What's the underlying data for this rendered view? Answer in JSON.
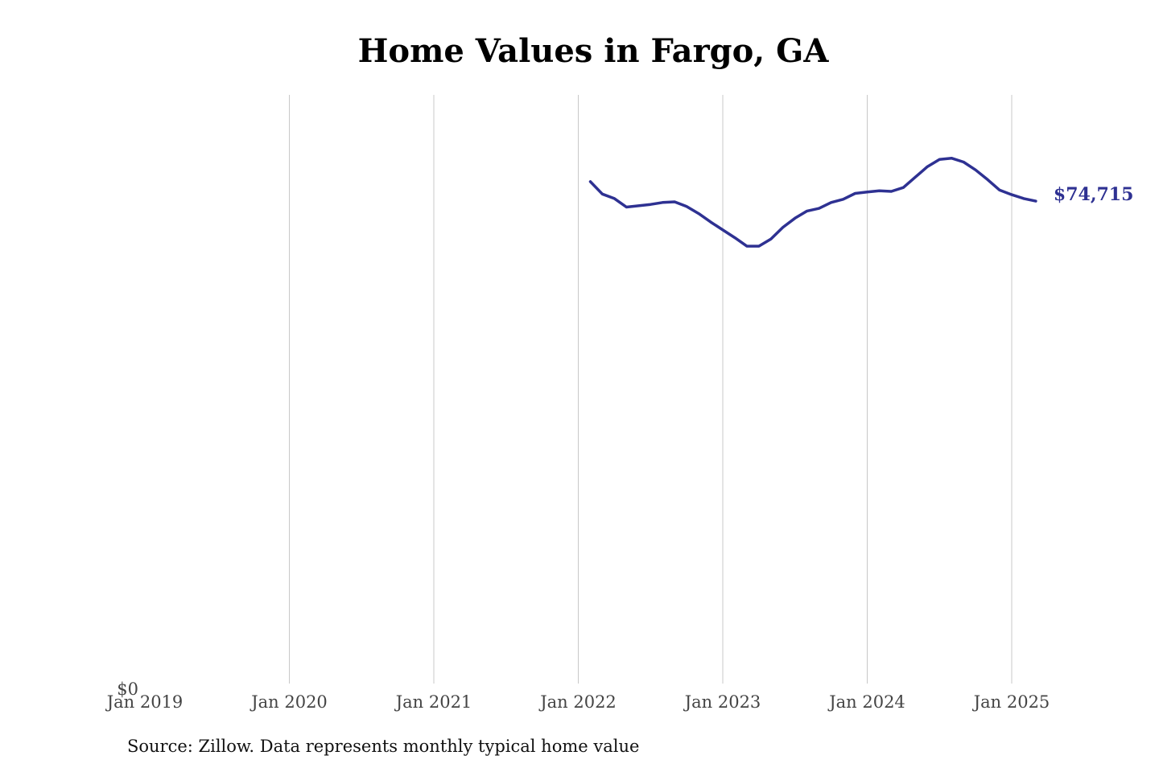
{
  "title": "Home Values in Fargo, GA",
  "source": "Source: Zillow. Data represents monthly typical home value",
  "colors": {
    "line": "#2e3192",
    "grid": "#c8c8c8",
    "text": "#444444"
  },
  "chart_data": {
    "type": "line",
    "title": "Home Values in Fargo, GA",
    "xlabel": "",
    "ylabel": "",
    "grid": "vertical",
    "y_tick_labels": [
      "$0"
    ],
    "ylim": [
      0,
      91000
    ],
    "x_tick_labels": [
      "Jan 2019",
      "Jan 2020",
      "Jan 2021",
      "Jan 2022",
      "Jan 2023",
      "Jan 2024",
      "Jan 2025"
    ],
    "end_label": "$74,715",
    "series": [
      {
        "points": [
          [
            "2022-02",
            77700
          ],
          [
            "2022-03",
            75800
          ],
          [
            "2022-04",
            75100
          ],
          [
            "2022-05",
            73800
          ],
          [
            "2022-06",
            74000
          ],
          [
            "2022-07",
            74200
          ],
          [
            "2022-08",
            74500
          ],
          [
            "2022-09",
            74600
          ],
          [
            "2022-10",
            73900
          ],
          [
            "2022-11",
            72800
          ],
          [
            "2022-12",
            71500
          ],
          [
            "2023-01",
            70300
          ],
          [
            "2023-02",
            69100
          ],
          [
            "2023-03",
            67800
          ],
          [
            "2023-04",
            67800
          ],
          [
            "2023-05",
            68900
          ],
          [
            "2023-06",
            70700
          ],
          [
            "2023-07",
            72100
          ],
          [
            "2023-08",
            73200
          ],
          [
            "2023-09",
            73600
          ],
          [
            "2023-10",
            74500
          ],
          [
            "2023-11",
            75000
          ],
          [
            "2023-12",
            75900
          ],
          [
            "2024-01",
            76100
          ],
          [
            "2024-02",
            76300
          ],
          [
            "2024-03",
            76200
          ],
          [
            "2024-04",
            76800
          ],
          [
            "2024-05",
            78400
          ],
          [
            "2024-06",
            80000
          ],
          [
            "2024-07",
            81100
          ],
          [
            "2024-08",
            81300
          ],
          [
            "2024-09",
            80700
          ],
          [
            "2024-10",
            79500
          ],
          [
            "2024-11",
            78000
          ],
          [
            "2024-12",
            76400
          ],
          [
            "2025-01",
            75700
          ],
          [
            "2025-02",
            75100
          ],
          [
            "2025-03",
            74715
          ]
        ]
      }
    ]
  }
}
